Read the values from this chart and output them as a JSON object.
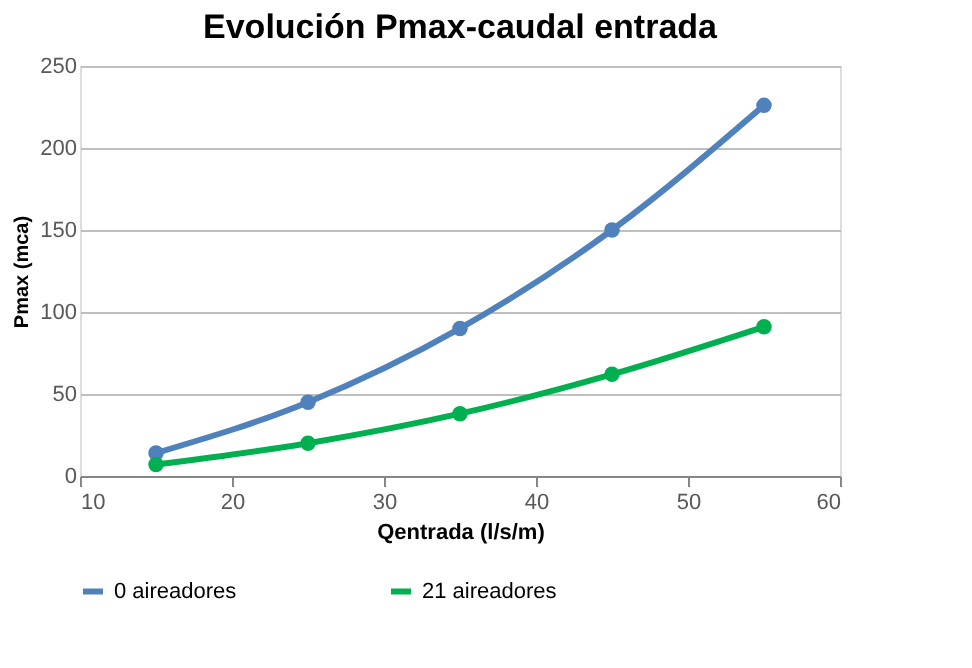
{
  "chart_data": {
    "type": "line",
    "title": "Evolución Pmax-caudal  entrada",
    "xlabel": "Qentrada (l/s/m)",
    "ylabel": "Pmax (mca)",
    "x": [
      15,
      25,
      35,
      45,
      55
    ],
    "series": [
      {
        "name": "0 aireadores",
        "color": "#4f81bd",
        "values": [
          14,
          45,
          90,
          150,
          226
        ]
      },
      {
        "name": "21 aireadores",
        "color": "#00b050",
        "values": [
          7,
          20,
          38,
          62,
          91
        ]
      }
    ],
    "xlim": [
      10,
      60
    ],
    "xticks": [
      10,
      20,
      30,
      40,
      50,
      60
    ],
    "ylim": [
      0,
      250
    ],
    "yticks": [
      0,
      50,
      100,
      150,
      200,
      250
    ],
    "grid": "y",
    "legend": "bottom",
    "marker": "circle",
    "line_style": "solid"
  }
}
